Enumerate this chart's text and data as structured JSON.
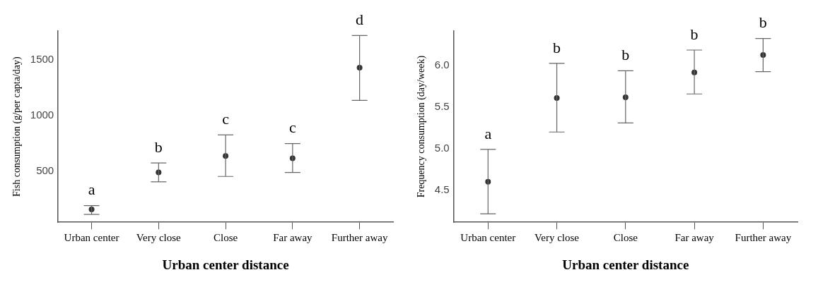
{
  "chart_data": [
    {
      "type": "scatter",
      "xlabel": "Urban center distance",
      "ylabel": "Fish consumption (g/per capta/day)",
      "categories": [
        "Urban center",
        "Very close",
        "Close",
        "Far away",
        "Further away"
      ],
      "values": [
        155,
        488,
        636,
        615,
        1430
      ],
      "errors": [
        [
          110,
          190
        ],
        [
          403,
          573
        ],
        [
          452,
          825
        ],
        [
          488,
          748
        ],
        [
          1136,
          1720
        ]
      ],
      "color": "#333333",
      "marker": "circle",
      "grid": false,
      "legend": false,
      "ylim": [
        40,
        1760
      ],
      "yticks": [
        500,
        1000,
        1500
      ],
      "annotations": [
        {
          "text": "a",
          "x": "Urban center",
          "y": 190
        },
        {
          "text": "b",
          "x": "Very close",
          "y": 573
        },
        {
          "text": "c",
          "x": "Close",
          "y": 825
        },
        {
          "text": "c",
          "x": "Far away",
          "y": 748
        },
        {
          "text": "d",
          "x": "Further away",
          "y": 1720
        }
      ]
    },
    {
      "type": "scatter",
      "xlabel": "Urban center distance",
      "ylabel": "Frequency consumption (day/week)",
      "categories": [
        "Urban center",
        "Very close",
        "Close",
        "Far away",
        "Further away"
      ],
      "values": [
        4.6,
        5.61,
        5.62,
        5.92,
        6.13
      ],
      "errors": [
        [
          4.21,
          4.99
        ],
        [
          5.2,
          6.03
        ],
        [
          5.31,
          5.94
        ],
        [
          5.66,
          6.19
        ],
        [
          5.93,
          6.33
        ]
      ],
      "color": "#333333",
      "marker": "circle",
      "grid": false,
      "legend": false,
      "ylim": [
        4.11,
        6.42
      ],
      "yticks": [
        4.5,
        {
          "value": 5,
          "label": "5.0"
        },
        5.5,
        {
          "value": 6,
          "label": "6.0"
        }
      ],
      "annotations": [
        {
          "text": "a",
          "x": "Urban center",
          "y": 4.99
        },
        {
          "text": "b",
          "x": "Very close",
          "y": 6.03
        },
        {
          "text": "b",
          "x": "Close",
          "y": 5.94
        },
        {
          "text": "b",
          "x": "Far away",
          "y": 6.19
        },
        {
          "text": "b",
          "x": "Further away",
          "y": 6.33
        }
      ]
    }
  ]
}
